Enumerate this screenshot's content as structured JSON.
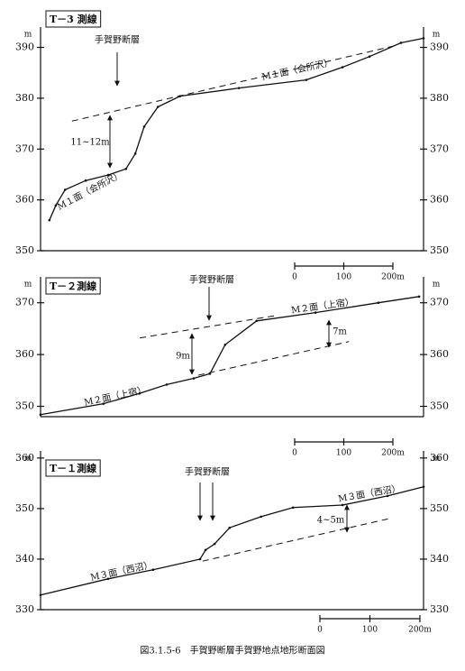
{
  "caption": "図3.1.5-6　手賀野断層手賀野地点地形断面図",
  "chart_data": [
    {
      "type": "line",
      "title": "T－3 測線",
      "unit": "m",
      "annotations": [
        "手賀野断層",
        "M１面（会所沢）",
        "M１面（会所沢）",
        "11~12m"
      ],
      "x": [
        18,
        31,
        50,
        92,
        138,
        174,
        193,
        211,
        239,
        284,
        404,
        541,
        615,
        670,
        734,
        780
      ],
      "values": [
        356,
        358.9,
        362,
        363.8,
        364.9,
        366.1,
        369.1,
        374.4,
        378.3,
        380.4,
        382,
        383.6,
        386.1,
        388.2,
        390.9,
        391.8
      ],
      "reference_lines": [
        {
          "x": [
            64,
            725
          ],
          "y": [
            375.5,
            390.4
          ]
        }
      ],
      "xlim": [
        0,
        780
      ],
      "ylim": [
        350,
        394
      ],
      "yticks": [
        350,
        360,
        370,
        380,
        390
      ],
      "scale_bar": [
        0,
        100,
        {
          "value": 200,
          "label": "200m"
        }
      ]
    },
    {
      "type": "line",
      "title": "T－２測線",
      "unit": "m",
      "annotations": [
        "手賀野断層",
        "M２面（上宿）",
        "M２面（上宿）",
        "9m",
        "7m"
      ],
      "x": [
        0,
        128,
        202,
        257,
        312,
        345,
        376,
        440,
        560,
        688,
        771
      ],
      "values": [
        348.4,
        350.5,
        352.5,
        354.2,
        355.4,
        356.3,
        361.9,
        366.5,
        368.1,
        370,
        371.2
      ],
      "reference_lines": [
        {
          "x": [
            202,
            477
          ],
          "y": [
            363.2,
            367.5
          ]
        },
        {
          "x": [
            321,
            628
          ],
          "y": [
            356,
            362.5
          ]
        }
      ],
      "xlim": [
        0,
        780
      ],
      "ylim": [
        348,
        375
      ],
      "yticks": [
        350,
        360,
        370
      ],
      "scale_bar": [
        0,
        100,
        {
          "value": 200,
          "label": "200m"
        }
      ]
    },
    {
      "type": "line",
      "title": "T－１測線",
      "unit": "m",
      "annotations": [
        "手賀野断層",
        "M３面（西沼）",
        "M３面（西沼）",
        "4~5m"
      ],
      "x": [
        0,
        135,
        225,
        319,
        330,
        348,
        378,
        441,
        505,
        604,
        694,
        766
      ],
      "values": [
        332.9,
        336.1,
        337.9,
        340,
        341.8,
        343,
        346.2,
        348.4,
        350.2,
        350.7,
        352.5,
        354.3
      ],
      "reference_lines": [
        {
          "x": [
            324,
            697
          ],
          "y": [
            339.6,
            348
          ]
        }
      ],
      "xlim": [
        0,
        766
      ],
      "ylim": [
        330,
        361.4
      ],
      "yticks": [
        330,
        340,
        350,
        360
      ],
      "scale_bar": [
        0,
        100,
        {
          "value": 200,
          "label": "200m"
        }
      ]
    }
  ]
}
